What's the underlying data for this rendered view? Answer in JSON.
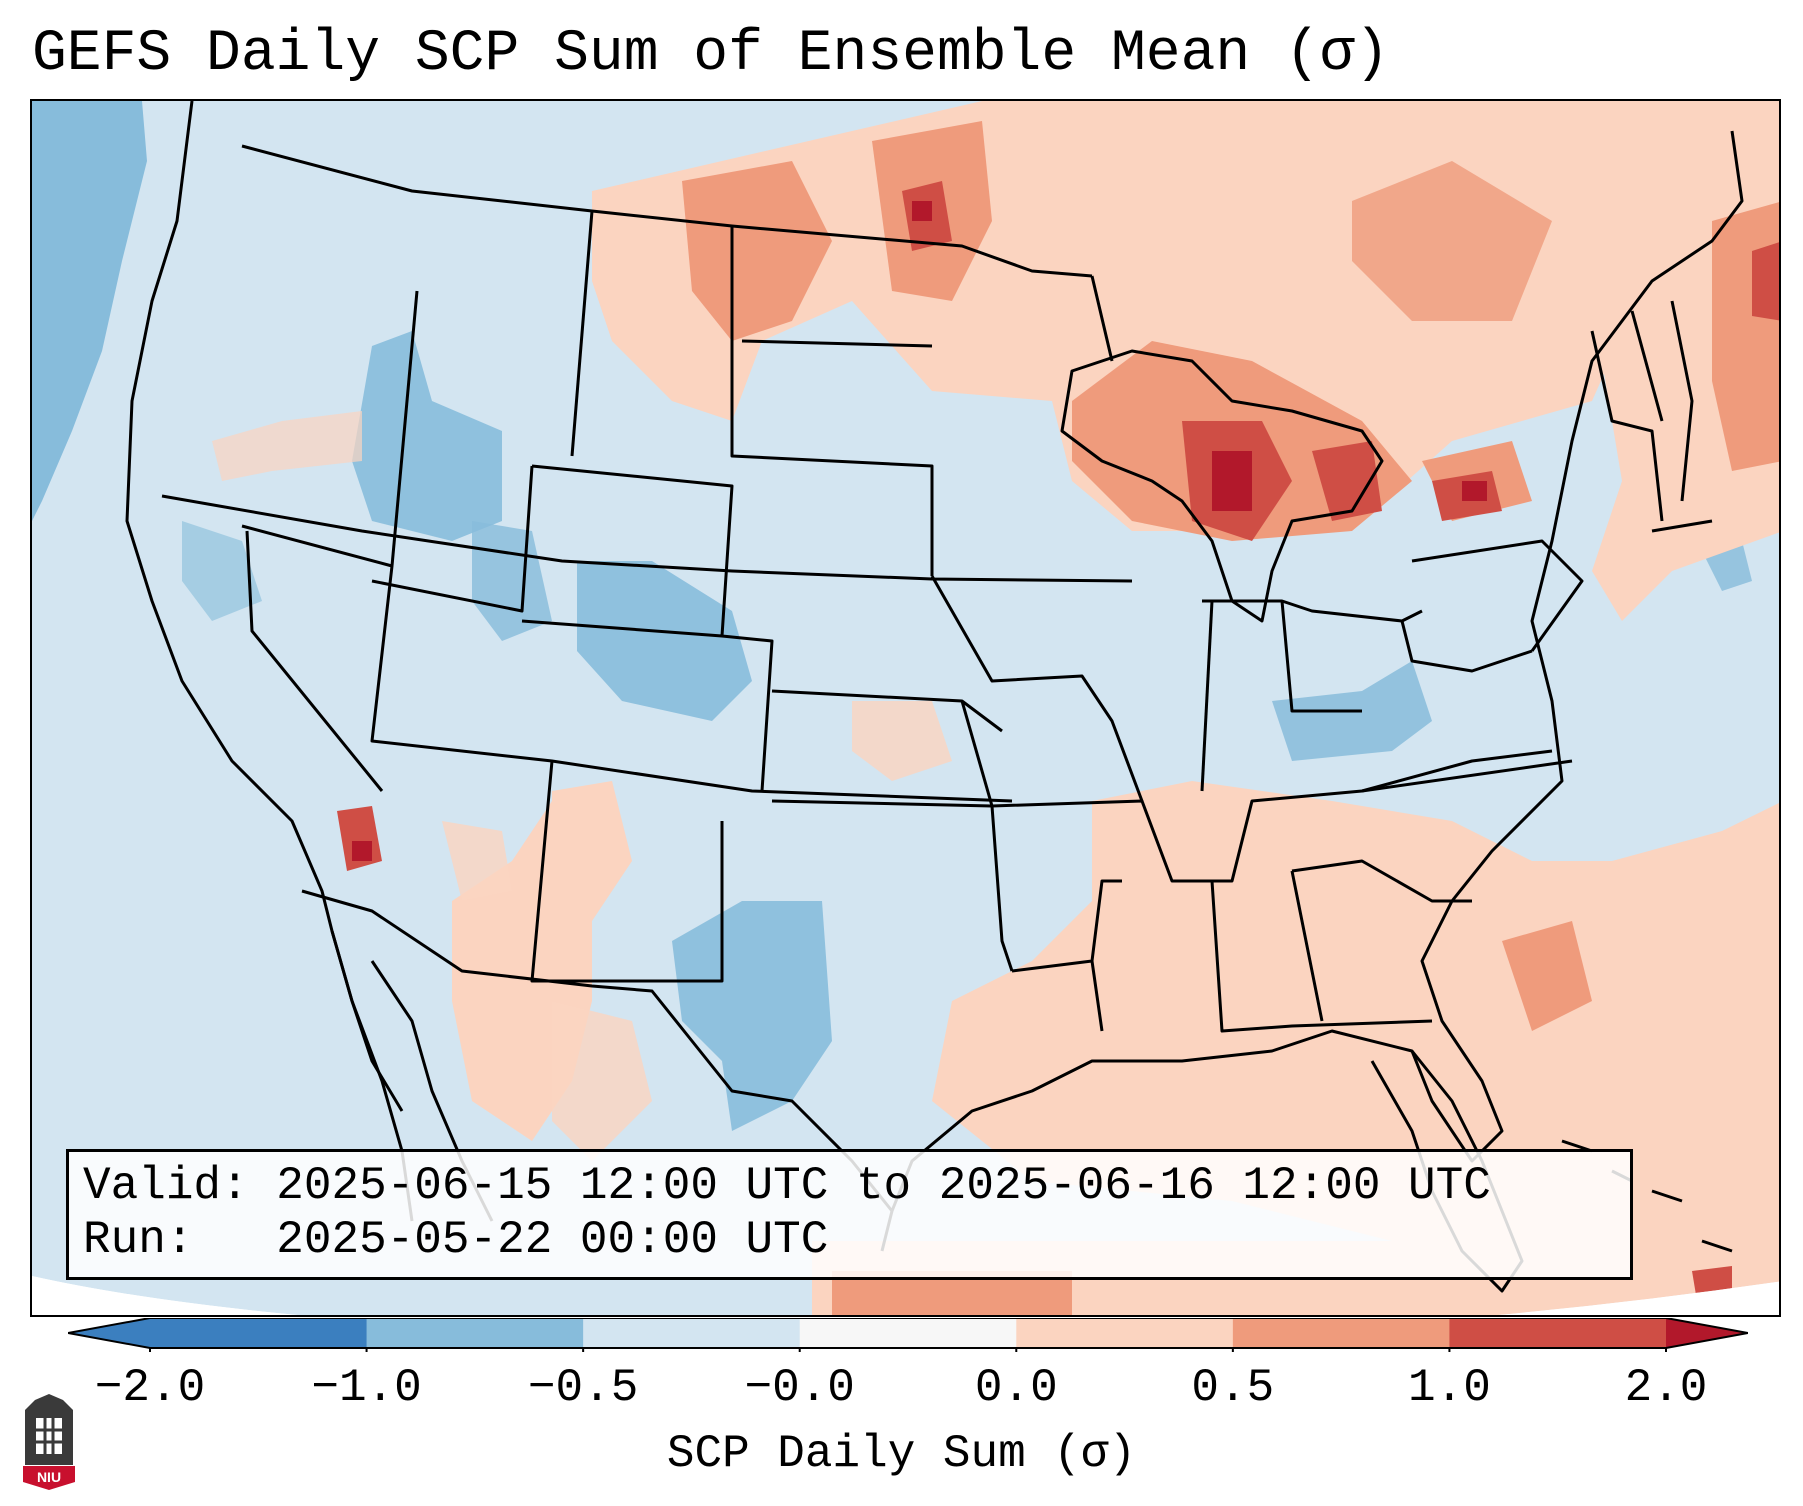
{
  "title": "GEFS Daily SCP Sum of Ensemble Mean (σ)",
  "info": {
    "valid_label": "Valid:",
    "valid_value": "2025-06-15 12:00 UTC to 2025-06-16 12:00 UTC",
    "run_label": "Run:",
    "run_value": "2025-05-22 00:00 UTC"
  },
  "colorbar": {
    "label": "SCP Daily Sum (σ)",
    "ticks": [
      "−2.0",
      "−1.0",
      "−0.5",
      "−0.0",
      "0.0",
      "0.5",
      "1.0",
      "2.0"
    ],
    "colors": [
      "#3b7fbf",
      "#87bcdb",
      "#d3e5f1",
      "#f7f7f7",
      "#fbd4c0",
      "#ef9b7c",
      "#cf4e45",
      "#b2182b"
    ]
  },
  "map": {
    "region": "Contiguous United States and surrounding areas",
    "background_color": "#d3e5f1",
    "levels": {
      "strong_negative": "#87bcdb",
      "neutral_negative": "#d3e5f1",
      "weak_positive": "#fbd4c0",
      "moderate_positive": "#ef9b7c",
      "strong_positive": "#cf4e45",
      "extreme_positive": "#b2182b"
    }
  },
  "logo": {
    "text": "NIU"
  }
}
